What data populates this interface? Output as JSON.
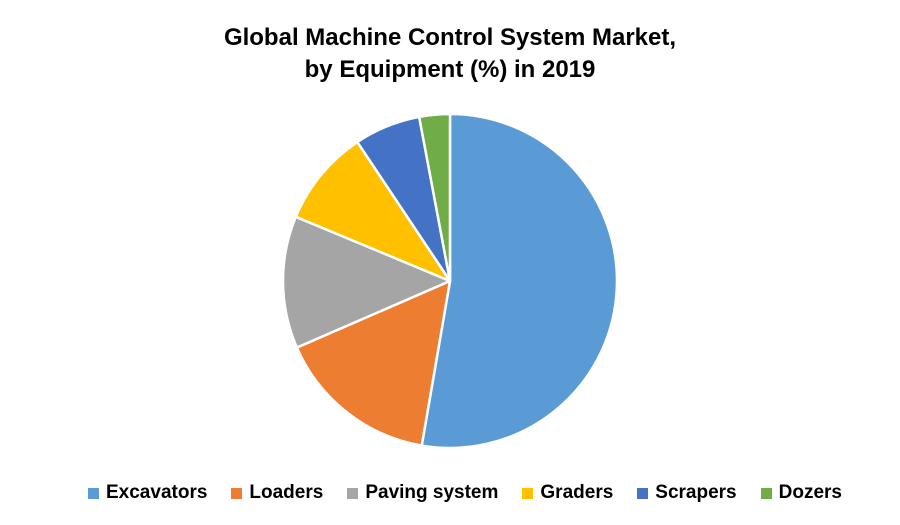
{
  "chart_data": {
    "type": "pie",
    "title": "Global Machine Control System Market,",
    "subtitle": "by Equipment (%) in 2019",
    "categories": [
      "Excavators",
      "Loaders",
      "Paving system",
      "Graders",
      "Scrapers",
      "Dozers"
    ],
    "values": [
      53.5,
      16.0,
      13.0,
      9.5,
      6.5,
      3.0
    ],
    "colors": [
      "#5b9bd5",
      "#ed7d31",
      "#a5a5a5",
      "#ffc000",
      "#4472c4",
      "#70ad47"
    ],
    "legend_position": "bottom",
    "start": "top, clockwise"
  }
}
